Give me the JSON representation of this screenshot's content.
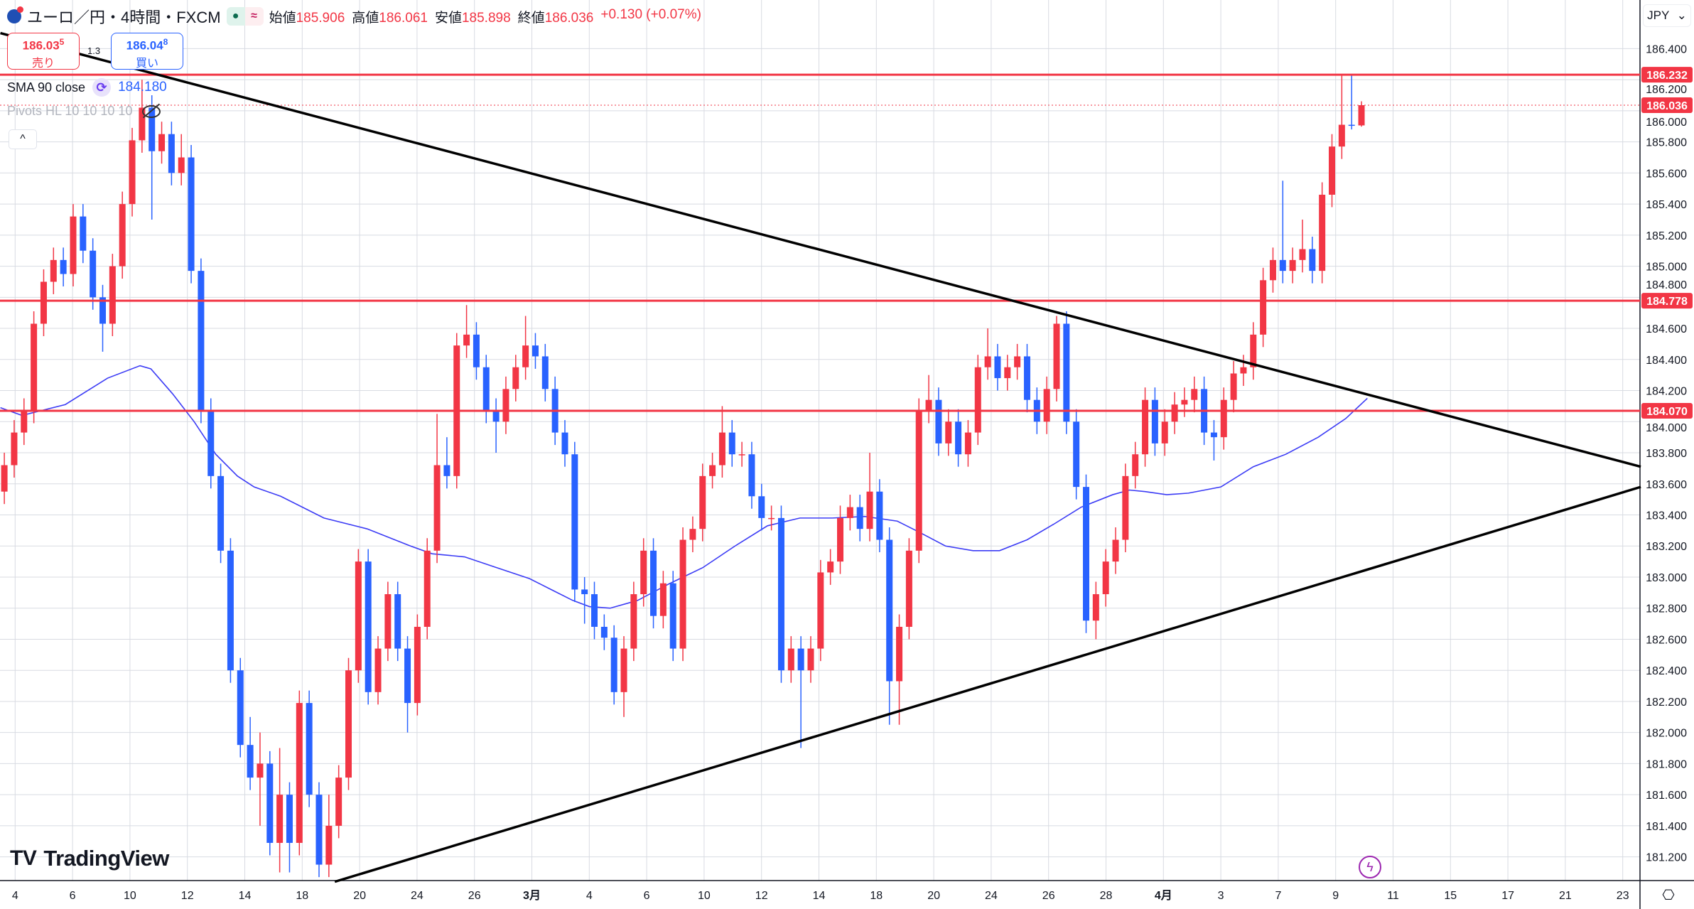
{
  "header": {
    "symbol_title": "ユーロ／円・4時間・FXCM",
    "market_status_icon": "green-dot-icon",
    "delayed_icon": "approx-icon",
    "market_status_glyph": "●",
    "delayed_glyph": "≈",
    "ohlc": [
      {
        "label": "始値",
        "value": "185.906"
      },
      {
        "label": "高値",
        "value": "186.061"
      },
      {
        "label": "安値",
        "value": "185.898"
      },
      {
        "label": "終値",
        "value": "186.036"
      }
    ],
    "change": "+0.130 (+0.07%)"
  },
  "trade": {
    "sell_price": "186.03",
    "sell_pip": "5",
    "sell_label": "売り",
    "spread": "1.3",
    "buy_price": "186.04",
    "buy_pip": "8",
    "buy_label": "買い"
  },
  "indicators": {
    "sma_label": "SMA 90 close",
    "sma_value": "184.180",
    "sma_icon_glyph": "⟳",
    "pivots_label": "Pivots HL 10 10 10 10",
    "collapse_glyph": "^"
  },
  "price_axis": {
    "currency": "JPY",
    "dropdown_glyph": "⌄",
    "ticks": [
      "186.400",
      "186.200",
      "186.000",
      "185.800",
      "185.600",
      "185.400",
      "185.200",
      "185.000",
      "184.800",
      "184.600",
      "184.400",
      "184.200",
      "184.000",
      "183.800",
      "183.600",
      "183.400",
      "183.200",
      "183.000",
      "182.800",
      "182.600",
      "182.400",
      "182.200",
      "182.000",
      "181.800",
      "181.600",
      "181.400",
      "181.200"
    ]
  },
  "time_axis": {
    "labels": [
      "4",
      "6",
      "10",
      "12",
      "14",
      "18",
      "20",
      "24",
      "26",
      "3月",
      "4",
      "6",
      "10",
      "12",
      "14",
      "18",
      "20",
      "24",
      "26",
      "28",
      "4月",
      "3",
      "7",
      "9",
      "11",
      "15",
      "17",
      "21",
      "23"
    ],
    "bold_labels": [
      "3月",
      "4月"
    ]
  },
  "logo": "TradingView",
  "bolt_glyph": "ϟ",
  "settings_glyph": "⎔",
  "colors": {
    "up": "#f23645",
    "down": "#2962ff",
    "sma": "#3b3bf5",
    "level": "#f23645",
    "trendline": "#000000"
  },
  "chart_data": {
    "type": "candlestick",
    "ylim": [
      181.05,
      186.71
    ],
    "grid": true,
    "levels": [
      {
        "price": 186.232,
        "label": "186.232",
        "style": "solid"
      },
      {
        "price": 184.778,
        "label": "184.778",
        "style": "solid"
      },
      {
        "price": 184.07,
        "label": "184.070",
        "style": "solid"
      },
      {
        "price": 186.036,
        "label": "186.036",
        "style": "dotted"
      }
    ],
    "trendlines": [
      {
        "from": [
          -0.4,
          186.5
        ],
        "to": [
          166.4,
          183.71
        ]
      },
      {
        "from": [
          33.6,
          181.04
        ],
        "to": [
          166.4,
          183.58
        ]
      }
    ],
    "sma": [
      [
        -0.4,
        184.09
      ],
      [
        1.8,
        184.04
      ],
      [
        6.2,
        184.11
      ],
      [
        10.5,
        184.28
      ],
      [
        13.8,
        184.36
      ],
      [
        14.9,
        184.34
      ],
      [
        17.1,
        184.18
      ],
      [
        19.3,
        184.0
      ],
      [
        21.5,
        183.79
      ],
      [
        23.7,
        183.65
      ],
      [
        25.4,
        183.58
      ],
      [
        28.1,
        183.52
      ],
      [
        32.5,
        183.38
      ],
      [
        36.9,
        183.31
      ],
      [
        41.3,
        183.2
      ],
      [
        43.5,
        183.15
      ],
      [
        46.8,
        183.13
      ],
      [
        50.1,
        183.06
      ],
      [
        53.4,
        182.99
      ],
      [
        55.6,
        182.92
      ],
      [
        57.8,
        182.85
      ],
      [
        59.5,
        182.81
      ],
      [
        61.6,
        182.8
      ],
      [
        64.4,
        182.85
      ],
      [
        67.7,
        182.96
      ],
      [
        71.0,
        183.06
      ],
      [
        74.3,
        183.2
      ],
      [
        77.6,
        183.33
      ],
      [
        80.9,
        183.38
      ],
      [
        84.2,
        183.38
      ],
      [
        87.5,
        183.39
      ],
      [
        90.8,
        183.36
      ],
      [
        93.0,
        183.29
      ],
      [
        95.7,
        183.2
      ],
      [
        98.5,
        183.17
      ],
      [
        101.2,
        183.17
      ],
      [
        104.0,
        183.24
      ],
      [
        106.7,
        183.34
      ],
      [
        109.5,
        183.45
      ],
      [
        112.7,
        183.53
      ],
      [
        114.4,
        183.56
      ],
      [
        116.0,
        183.55
      ],
      [
        118.2,
        183.53
      ],
      [
        120.4,
        183.54
      ],
      [
        123.7,
        183.58
      ],
      [
        127.0,
        183.71
      ],
      [
        130.3,
        183.79
      ],
      [
        133.6,
        183.9
      ],
      [
        136.4,
        184.02
      ],
      [
        138.6,
        184.15
      ]
    ],
    "candles": [
      [
        183.55,
        183.8,
        183.47,
        183.72
      ],
      [
        183.72,
        184.01,
        183.64,
        183.93
      ],
      [
        183.93,
        184.15,
        183.85,
        184.07
      ],
      [
        184.07,
        184.71,
        183.99,
        184.63
      ],
      [
        184.63,
        184.98,
        184.55,
        184.9
      ],
      [
        184.9,
        185.12,
        184.82,
        185.04
      ],
      [
        185.04,
        185.12,
        184.87,
        184.95
      ],
      [
        184.95,
        185.4,
        184.87,
        185.32
      ],
      [
        185.32,
        185.4,
        185.02,
        185.1
      ],
      [
        185.1,
        185.18,
        184.72,
        184.8
      ],
      [
        184.8,
        184.88,
        184.45,
        184.63
      ],
      [
        184.63,
        185.08,
        184.55,
        185.0
      ],
      [
        185.0,
        185.48,
        184.92,
        185.4
      ],
      [
        185.4,
        185.89,
        185.32,
        185.81
      ],
      [
        185.81,
        186.2,
        185.73,
        186.02
      ],
      [
        186.02,
        186.1,
        185.3,
        185.74
      ],
      [
        185.74,
        185.93,
        185.66,
        185.85
      ],
      [
        185.85,
        185.93,
        185.52,
        185.6
      ],
      [
        185.6,
        185.85,
        185.52,
        185.7
      ],
      [
        185.7,
        185.78,
        184.89,
        184.97
      ],
      [
        184.97,
        185.05,
        183.99,
        184.07
      ],
      [
        184.07,
        184.15,
        183.57,
        183.65
      ],
      [
        183.65,
        183.73,
        183.09,
        183.17
      ],
      [
        183.17,
        183.25,
        182.32,
        182.4
      ],
      [
        182.4,
        182.48,
        181.84,
        181.92
      ],
      [
        181.92,
        182.1,
        181.63,
        181.71
      ],
      [
        181.71,
        182.0,
        181.4,
        181.8
      ],
      [
        181.8,
        181.88,
        181.21,
        181.29
      ],
      [
        181.29,
        181.9,
        181.1,
        181.6
      ],
      [
        181.6,
        181.68,
        181.1,
        181.29
      ],
      [
        181.29,
        182.27,
        181.21,
        182.19
      ],
      [
        182.19,
        182.27,
        181.52,
        181.6
      ],
      [
        181.6,
        181.68,
        181.07,
        181.15
      ],
      [
        181.15,
        181.6,
        181.07,
        181.4
      ],
      [
        181.4,
        181.79,
        181.32,
        181.71
      ],
      [
        181.71,
        182.48,
        181.63,
        182.4
      ],
      [
        182.4,
        183.18,
        182.32,
        183.1
      ],
      [
        183.1,
        183.18,
        182.18,
        182.26
      ],
      [
        182.26,
        182.62,
        182.18,
        182.54
      ],
      [
        182.54,
        182.97,
        182.46,
        182.89
      ],
      [
        182.89,
        182.97,
        182.46,
        182.54
      ],
      [
        182.54,
        182.62,
        182.0,
        182.19
      ],
      [
        182.19,
        182.76,
        182.11,
        182.68
      ],
      [
        182.68,
        183.25,
        182.6,
        183.17
      ],
      [
        183.17,
        184.05,
        183.09,
        183.72
      ],
      [
        183.72,
        183.9,
        183.57,
        183.65
      ],
      [
        183.65,
        184.57,
        183.57,
        184.49
      ],
      [
        184.49,
        184.75,
        184.41,
        184.56
      ],
      [
        184.56,
        184.64,
        184.27,
        184.35
      ],
      [
        184.35,
        184.43,
        183.99,
        184.07
      ],
      [
        184.07,
        184.15,
        183.8,
        184.0
      ],
      [
        184.0,
        184.29,
        183.92,
        184.21
      ],
      [
        184.21,
        184.43,
        184.13,
        184.35
      ],
      [
        184.35,
        184.68,
        184.27,
        184.49
      ],
      [
        184.49,
        184.57,
        184.34,
        184.42
      ],
      [
        184.42,
        184.5,
        184.13,
        184.21
      ],
      [
        184.21,
        184.29,
        183.85,
        183.93
      ],
      [
        183.93,
        184.01,
        183.71,
        183.79
      ],
      [
        183.79,
        183.87,
        182.84,
        182.92
      ],
      [
        182.92,
        183.0,
        182.7,
        182.89
      ],
      [
        182.89,
        182.97,
        182.6,
        182.68
      ],
      [
        182.68,
        182.76,
        182.53,
        182.61
      ],
      [
        182.61,
        182.69,
        182.18,
        182.26
      ],
      [
        182.26,
        182.62,
        182.1,
        182.54
      ],
      [
        182.54,
        182.97,
        182.46,
        182.89
      ],
      [
        182.89,
        183.25,
        182.81,
        183.17
      ],
      [
        183.17,
        183.25,
        182.67,
        182.75
      ],
      [
        182.75,
        183.04,
        182.67,
        182.96
      ],
      [
        182.96,
        183.04,
        182.46,
        182.54
      ],
      [
        182.54,
        183.32,
        182.46,
        183.24
      ],
      [
        183.24,
        183.39,
        183.16,
        183.31
      ],
      [
        183.31,
        183.73,
        183.23,
        183.65
      ],
      [
        183.65,
        183.8,
        183.57,
        183.72
      ],
      [
        183.72,
        184.1,
        183.64,
        183.93
      ],
      [
        183.93,
        184.01,
        183.71,
        183.79
      ],
      [
        183.79,
        183.87,
        183.71,
        183.79
      ],
      [
        183.79,
        183.87,
        183.44,
        183.52
      ],
      [
        183.52,
        183.6,
        183.3,
        183.38
      ],
      [
        183.38,
        183.46,
        183.3,
        183.38
      ],
      [
        183.38,
        183.46,
        182.32,
        182.4
      ],
      [
        182.4,
        182.62,
        182.32,
        182.54
      ],
      [
        182.54,
        182.62,
        181.9,
        182.4
      ],
      [
        182.4,
        182.62,
        182.32,
        182.54
      ],
      [
        182.54,
        183.11,
        182.46,
        183.03
      ],
      [
        183.03,
        183.18,
        182.95,
        183.1
      ],
      [
        183.1,
        183.46,
        183.02,
        183.38
      ],
      [
        183.38,
        183.53,
        183.3,
        183.45
      ],
      [
        183.45,
        183.53,
        183.23,
        183.31
      ],
      [
        183.31,
        183.8,
        183.23,
        183.55
      ],
      [
        183.55,
        183.63,
        183.16,
        183.24
      ],
      [
        183.24,
        183.32,
        182.05,
        182.33
      ],
      [
        182.33,
        182.76,
        182.05,
        182.68
      ],
      [
        182.68,
        183.25,
        182.6,
        183.17
      ],
      [
        183.17,
        184.15,
        183.09,
        184.07
      ],
      [
        184.07,
        184.3,
        183.99,
        184.14
      ],
      [
        184.14,
        184.22,
        183.78,
        183.86
      ],
      [
        183.86,
        184.08,
        183.78,
        184.0
      ],
      [
        184.0,
        184.08,
        183.71,
        183.79
      ],
      [
        183.79,
        184.01,
        183.71,
        183.93
      ],
      [
        183.93,
        184.43,
        183.85,
        184.35
      ],
      [
        184.35,
        184.6,
        184.27,
        184.42
      ],
      [
        184.42,
        184.5,
        184.2,
        184.28
      ],
      [
        184.28,
        184.43,
        184.2,
        184.35
      ],
      [
        184.35,
        184.5,
        184.27,
        184.42
      ],
      [
        184.42,
        184.5,
        184.06,
        184.14
      ],
      [
        184.14,
        184.22,
        183.92,
        184.0
      ],
      [
        184.0,
        184.29,
        183.92,
        184.21
      ],
      [
        184.21,
        184.68,
        184.13,
        184.63
      ],
      [
        184.63,
        184.71,
        183.92,
        184.0
      ],
      [
        184.0,
        184.08,
        183.5,
        183.58
      ],
      [
        183.58,
        183.66,
        182.64,
        182.72
      ],
      [
        182.72,
        182.97,
        182.6,
        182.89
      ],
      [
        182.89,
        183.18,
        182.81,
        183.1
      ],
      [
        183.1,
        183.32,
        183.02,
        183.24
      ],
      [
        183.24,
        183.73,
        183.16,
        183.65
      ],
      [
        183.65,
        183.87,
        183.57,
        183.79
      ],
      [
        183.79,
        184.22,
        183.71,
        184.14
      ],
      [
        184.14,
        184.22,
        183.78,
        183.86
      ],
      [
        183.86,
        184.08,
        183.78,
        184.0
      ],
      [
        184.0,
        184.19,
        183.92,
        184.11
      ],
      [
        184.11,
        184.22,
        184.03,
        184.14
      ],
      [
        184.14,
        184.29,
        184.06,
        184.21
      ],
      [
        184.21,
        184.29,
        183.85,
        183.93
      ],
      [
        183.93,
        184.01,
        183.75,
        183.9
      ],
      [
        183.9,
        184.22,
        183.82,
        184.14
      ],
      [
        184.14,
        184.39,
        184.06,
        184.31
      ],
      [
        184.31,
        184.43,
        184.23,
        184.35
      ],
      [
        184.35,
        184.64,
        184.27,
        184.56
      ],
      [
        184.56,
        184.99,
        184.48,
        184.91
      ],
      [
        184.91,
        185.12,
        184.83,
        185.04
      ],
      [
        185.04,
        185.55,
        184.89,
        184.97
      ],
      [
        184.97,
        185.12,
        184.89,
        185.04
      ],
      [
        185.04,
        185.3,
        184.96,
        185.11
      ],
      [
        185.11,
        185.19,
        184.89,
        184.97
      ],
      [
        184.97,
        185.54,
        184.89,
        185.46
      ],
      [
        185.46,
        185.85,
        185.38,
        185.77
      ],
      [
        185.77,
        186.23,
        185.69,
        185.91
      ],
      [
        185.91,
        186.23,
        185.88,
        185.906
      ],
      [
        185.906,
        186.061,
        185.898,
        186.036
      ]
    ]
  }
}
